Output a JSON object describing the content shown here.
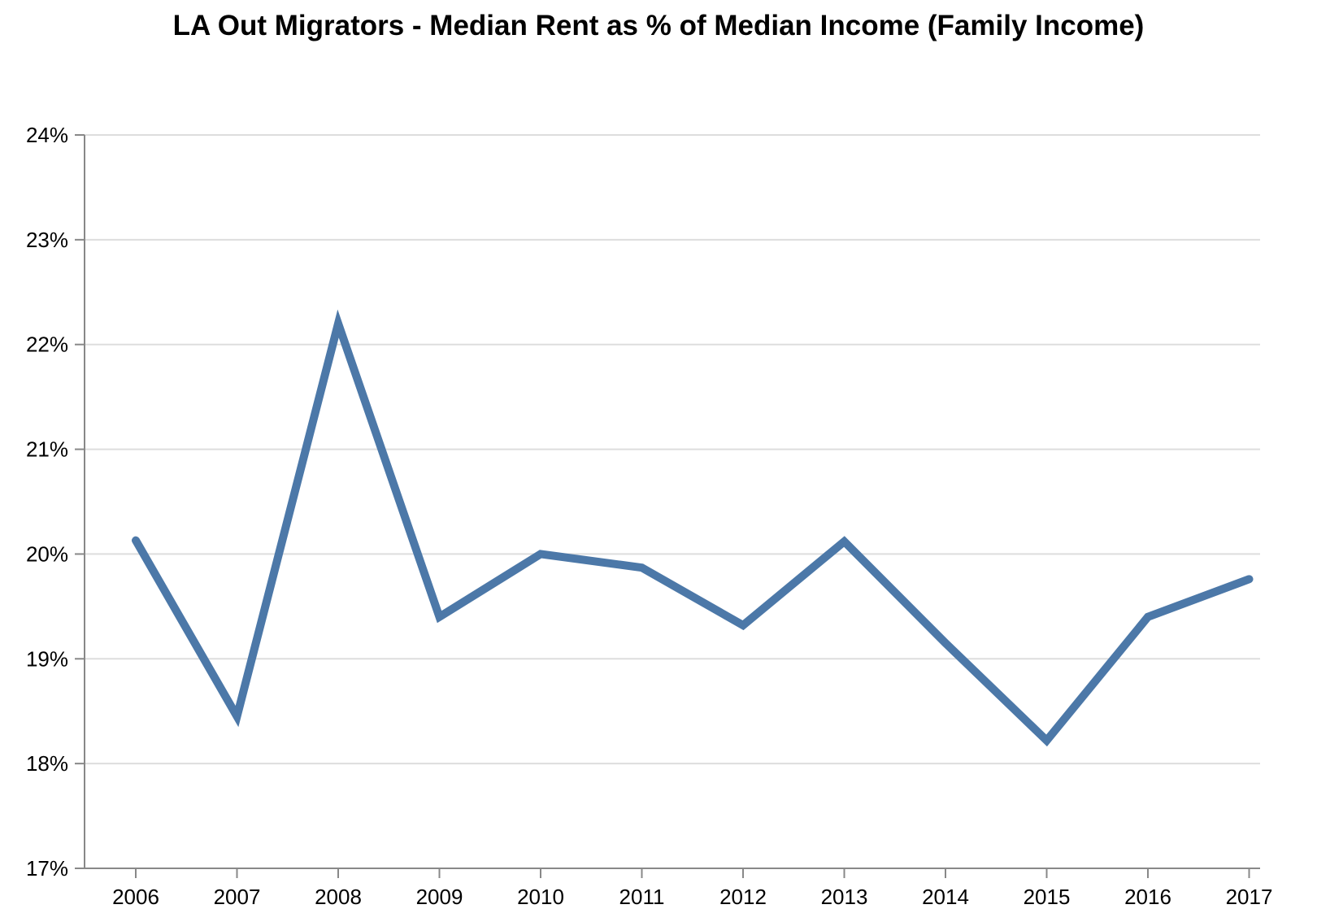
{
  "chart_data": {
    "type": "line",
    "title": "LA Out Migrators - Median Rent as % of Median Income (Family Income)",
    "xlabel": "",
    "ylabel": "",
    "categories": [
      "2006",
      "2007",
      "2008",
      "2009",
      "2010",
      "2011",
      "2012",
      "2013",
      "2014",
      "2015",
      "2016",
      "2017"
    ],
    "series": [
      {
        "values": [
          20.13,
          18.45,
          22.2,
          19.4,
          20.0,
          19.87,
          19.32,
          20.12,
          19.15,
          18.22,
          19.4,
          19.76
        ]
      }
    ],
    "ylim": [
      17,
      24
    ],
    "yticks": [
      17,
      18,
      19,
      20,
      21,
      22,
      23,
      24
    ],
    "ytick_labels": [
      "17%",
      "18%",
      "19%",
      "20%",
      "21%",
      "22%",
      "23%",
      "24%"
    ],
    "grid": true,
    "legend": "none",
    "colors": {
      "line": "#4c78a8",
      "grid": "#dddddd",
      "axis": "#888888",
      "text": "#000000"
    }
  }
}
